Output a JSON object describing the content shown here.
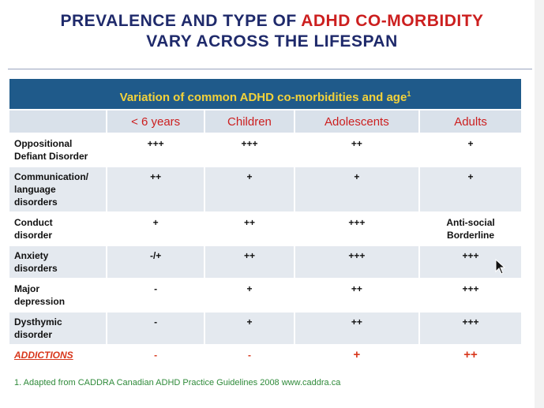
{
  "title": {
    "line1_part1": "PREVALENCE AND TYPE OF",
    "line1_highlight": "ADHD CO-MORBIDITY",
    "line2": "VARY ACROSS THE LIFESPAN"
  },
  "table": {
    "caption": "Variation of common ADHD co-morbidities and age",
    "caption_sup": "1",
    "columns": [
      "< 6 years",
      "Children",
      "Adolescents",
      "Adults"
    ],
    "rows": [
      {
        "label": [
          "Oppositional",
          "Defiant Disorder"
        ],
        "values": [
          "+++",
          "+++",
          "++",
          "+"
        ]
      },
      {
        "label": [
          "Communication/",
          "language",
          "disorders"
        ],
        "values": [
          "++",
          "+",
          "+",
          "+"
        ]
      },
      {
        "label": [
          "Conduct",
          "disorder"
        ],
        "values": [
          "+",
          "++",
          "+++",
          "Anti-social\nBorderline"
        ]
      },
      {
        "label": [
          "Anxiety",
          "disorders"
        ],
        "values": [
          "-/+",
          "++",
          "+++",
          "+++"
        ]
      },
      {
        "label": [
          "Major",
          "depression"
        ],
        "values": [
          "-",
          "+",
          "++",
          "+++"
        ]
      },
      {
        "label": [
          "Dysthymic",
          "disorder"
        ],
        "values": [
          "-",
          "+",
          "++",
          "+++"
        ]
      },
      {
        "label": [
          "ADDICTIONS"
        ],
        "values": [
          "-",
          "-",
          "+",
          "++"
        ]
      }
    ]
  },
  "footnote": "1. Adapted from CADDRA Canadian ADHD Practice Guidelines 2008 www.caddra.ca",
  "colors": {
    "title": "#1f2a6b",
    "accent": "#cc1f1f",
    "banner": "#1f5a8a",
    "banner_text": "#f3d23a",
    "footnote": "#2f8a3a"
  },
  "icons": {
    "cursor": "mouse-pointer-icon"
  }
}
